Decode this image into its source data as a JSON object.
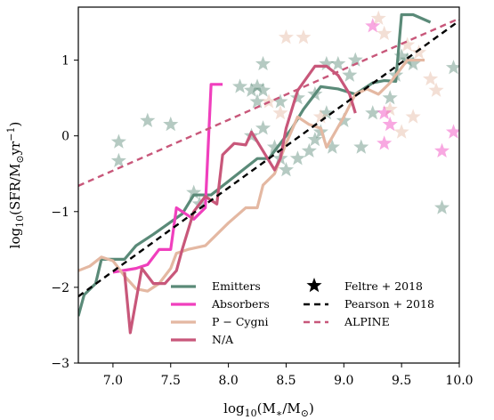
{
  "chart_data": {
    "type": "line",
    "xlabel": "log10(M*/M⊙)",
    "ylabel": "log10(SFR/M⊙yr⁻¹)",
    "xlim": [
      6.7,
      10.0
    ],
    "ylim": [
      -3.0,
      1.7
    ],
    "xticks": [
      "7.0",
      "7.5",
      "8.0",
      "8.5",
      "9.0",
      "9.5",
      "10.0"
    ],
    "xtick_values": [
      7.0,
      7.5,
      8.0,
      8.5,
      9.0,
      9.5,
      10.0
    ],
    "yticks": [
      "−3",
      "−2",
      "−1",
      "0",
      "1"
    ],
    "ytick_values": [
      -3,
      -2,
      -1,
      0,
      1
    ],
    "legend_position": "lower-center",
    "series": [
      {
        "name": "Emitters",
        "kind": "line",
        "color": "#5a8a78",
        "width": 3.2,
        "opacity": 1,
        "x": [
          6.7,
          6.75,
          6.85,
          6.9,
          7.1,
          7.2,
          7.35,
          7.6,
          7.7,
          7.85,
          8.0,
          8.25,
          8.35,
          8.45,
          8.55,
          8.65,
          8.8,
          8.95,
          9.1,
          9.25,
          9.35,
          9.45,
          9.5,
          9.6,
          9.75
        ],
        "y": [
          -2.38,
          -2.1,
          -1.95,
          -1.63,
          -1.63,
          -1.45,
          -1.3,
          -1.03,
          -0.78,
          -0.78,
          -0.6,
          -0.3,
          -0.3,
          -0.1,
          0.1,
          0.35,
          0.65,
          0.62,
          0.55,
          0.7,
          0.73,
          0.72,
          1.6,
          1.6,
          1.5
        ]
      },
      {
        "name": "Absorbers",
        "kind": "line",
        "color": "#f03fbd",
        "width": 3.2,
        "opacity": 1,
        "x": [
          7.0,
          7.2,
          7.3,
          7.4,
          7.5,
          7.55,
          7.7,
          7.8,
          7.85,
          7.95
        ],
        "y": [
          -1.8,
          -1.75,
          -1.7,
          -1.5,
          -1.5,
          -0.95,
          -1.1,
          -0.95,
          0.68,
          0.68
        ]
      },
      {
        "name": "P − Cygni",
        "kind": "line",
        "color": "#e4b8a2",
        "width": 3.2,
        "opacity": 1,
        "x": [
          6.7,
          6.8,
          6.9,
          7.0,
          7.1,
          7.2,
          7.3,
          7.4,
          7.5,
          7.55,
          7.65,
          7.8,
          8.0,
          8.15,
          8.25,
          8.3,
          8.4,
          8.5,
          8.6,
          8.7,
          8.8,
          8.85,
          9.0,
          9.1,
          9.2,
          9.3,
          9.4,
          9.55,
          9.7
        ],
        "y": [
          -1.78,
          -1.72,
          -1.6,
          -1.65,
          -1.85,
          -2.02,
          -2.05,
          -1.95,
          -1.75,
          -1.55,
          -1.5,
          -1.45,
          -1.15,
          -0.95,
          -0.95,
          -0.65,
          -0.5,
          -0.1,
          0.25,
          0.15,
          0.1,
          -0.15,
          0.25,
          0.55,
          0.62,
          0.55,
          0.7,
          1.0,
          1.0
        ]
      },
      {
        "name": "N/A",
        "kind": "line",
        "color": "#c8577a",
        "width": 3.2,
        "opacity": 1,
        "x": [
          7.1,
          7.15,
          7.25,
          7.35,
          7.45,
          7.55,
          7.6,
          7.7,
          7.8,
          7.9,
          7.95,
          8.05,
          8.15,
          8.2,
          8.3,
          8.4,
          8.45,
          8.5,
          8.6,
          8.75,
          8.85,
          8.95,
          9.05,
          9.1
        ],
        "y": [
          -1.8,
          -2.6,
          -1.75,
          -1.95,
          -1.95,
          -1.78,
          -1.5,
          -1.0,
          -0.8,
          -0.9,
          -0.25,
          -0.1,
          -0.12,
          0.05,
          -0.2,
          -0.45,
          -0.3,
          0.1,
          0.6,
          0.92,
          0.92,
          0.8,
          0.55,
          0.3
        ]
      },
      {
        "name": "Pearson + 2018",
        "kind": "line",
        "color": "#000000",
        "width": 2.4,
        "dash": "7,5",
        "opacity": 1,
        "x": [
          6.7,
          10.0
        ],
        "y": [
          -2.12,
          1.52
        ]
      },
      {
        "name": "ALPINE",
        "kind": "line",
        "color": "#c8577a",
        "width": 2.4,
        "dash": "7,5",
        "opacity": 1,
        "x": [
          6.7,
          10.0
        ],
        "y": [
          -0.66,
          1.55
        ]
      },
      {
        "name": "Feltre + 2018",
        "kind": "scatter",
        "marker": "star",
        "points": [
          {
            "x": 7.05,
            "y": -0.33,
            "c": "#5a8a78"
          },
          {
            "x": 7.05,
            "y": -0.08,
            "c": "#5a8a78"
          },
          {
            "x": 7.3,
            "y": 0.2,
            "c": "#5a8a78"
          },
          {
            "x": 7.5,
            "y": 0.15,
            "c": "#5a8a78"
          },
          {
            "x": 8.1,
            "y": 0.65,
            "c": "#5a8a78"
          },
          {
            "x": 8.2,
            "y": 0.6,
            "c": "#5a8a78"
          },
          {
            "x": 8.25,
            "y": 0.65,
            "c": "#5a8a78"
          },
          {
            "x": 8.3,
            "y": 0.6,
            "c": "#5a8a78"
          },
          {
            "x": 8.25,
            "y": 0.45,
            "c": "#5a8a78"
          },
          {
            "x": 8.45,
            "y": 0.45,
            "c": "#5a8a78"
          },
          {
            "x": 8.3,
            "y": 0.95,
            "c": "#5a8a78"
          },
          {
            "x": 8.6,
            "y": 0.5,
            "c": "#5a8a78"
          },
          {
            "x": 8.75,
            "y": 0.55,
            "c": "#5a8a78"
          },
          {
            "x": 8.85,
            "y": 0.95,
            "c": "#5a8a78"
          },
          {
            "x": 8.95,
            "y": 0.95,
            "c": "#5a8a78"
          },
          {
            "x": 9.1,
            "y": 1.0,
            "c": "#5a8a78"
          },
          {
            "x": 9.05,
            "y": 0.8,
            "c": "#5a8a78"
          },
          {
            "x": 9.45,
            "y": 0.8,
            "c": "#5a8a78"
          },
          {
            "x": 9.5,
            "y": 1.05,
            "c": "#5a8a78"
          },
          {
            "x": 9.55,
            "y": 1.0,
            "c": "#5a8a78"
          },
          {
            "x": 9.6,
            "y": 0.95,
            "c": "#5a8a78"
          },
          {
            "x": 9.95,
            "y": 0.9,
            "c": "#5a8a78"
          },
          {
            "x": 9.85,
            "y": -0.95,
            "c": "#5a8a78"
          },
          {
            "x": 8.2,
            "y": 0.0,
            "c": "#5a8a78"
          },
          {
            "x": 8.3,
            "y": 0.1,
            "c": "#5a8a78"
          },
          {
            "x": 8.4,
            "y": -0.15,
            "c": "#5a8a78"
          },
          {
            "x": 8.45,
            "y": -0.3,
            "c": "#5a8a78"
          },
          {
            "x": 8.5,
            "y": -0.45,
            "c": "#5a8a78"
          },
          {
            "x": 8.6,
            "y": -0.3,
            "c": "#5a8a78"
          },
          {
            "x": 8.7,
            "y": -0.2,
            "c": "#5a8a78"
          },
          {
            "x": 8.75,
            "y": -0.05,
            "c": "#5a8a78"
          },
          {
            "x": 8.8,
            "y": 0.05,
            "c": "#5a8a78"
          },
          {
            "x": 8.85,
            "y": 0.3,
            "c": "#5a8a78"
          },
          {
            "x": 8.9,
            "y": -0.15,
            "c": "#5a8a78"
          },
          {
            "x": 9.0,
            "y": 0.2,
            "c": "#5a8a78"
          },
          {
            "x": 9.15,
            "y": -0.15,
            "c": "#5a8a78"
          },
          {
            "x": 9.25,
            "y": 0.3,
            "c": "#5a8a78"
          },
          {
            "x": 9.4,
            "y": 0.5,
            "c": "#5a8a78"
          },
          {
            "x": 7.7,
            "y": -0.75,
            "c": "#5a8a78"
          },
          {
            "x": 7.75,
            "y": -0.9,
            "c": "#5a8a78"
          },
          {
            "x": 8.5,
            "y": 1.3,
            "c": "#e4b8a2"
          },
          {
            "x": 8.65,
            "y": 1.3,
            "c": "#e4b8a2"
          },
          {
            "x": 9.3,
            "y": 1.55,
            "c": "#e4b8a2"
          },
          {
            "x": 9.35,
            "y": 1.35,
            "c": "#e4b8a2"
          },
          {
            "x": 9.55,
            "y": 1.2,
            "c": "#e4b8a2"
          },
          {
            "x": 9.65,
            "y": 1.1,
            "c": "#e4b8a2"
          },
          {
            "x": 9.75,
            "y": 0.75,
            "c": "#e4b8a2"
          },
          {
            "x": 9.8,
            "y": 0.6,
            "c": "#e4b8a2"
          },
          {
            "x": 9.5,
            "y": 0.05,
            "c": "#e4b8a2"
          },
          {
            "x": 8.35,
            "y": 0.45,
            "c": "#e4b8a2"
          },
          {
            "x": 8.45,
            "y": 0.3,
            "c": "#e4b8a2"
          },
          {
            "x": 8.8,
            "y": 0.25,
            "c": "#e4b8a2"
          },
          {
            "x": 9.4,
            "y": 0.35,
            "c": "#e4b8a2"
          },
          {
            "x": 9.6,
            "y": 0.25,
            "c": "#e4b8a2"
          },
          {
            "x": 9.25,
            "y": 1.45,
            "c": "#f03fbd"
          },
          {
            "x": 9.35,
            "y": 0.3,
            "c": "#f03fbd"
          },
          {
            "x": 9.4,
            "y": 0.15,
            "c": "#f03fbd"
          },
          {
            "x": 9.35,
            "y": -0.1,
            "c": "#f03fbd"
          },
          {
            "x": 9.95,
            "y": 0.05,
            "c": "#f03fbd"
          },
          {
            "x": 9.85,
            "y": -0.2,
            "c": "#f03fbd"
          }
        ]
      }
    ]
  },
  "legend": {
    "col1": [
      {
        "label": "Emitters",
        "color": "#5a8a78",
        "style": "solid"
      },
      {
        "label": "Absorbers",
        "color": "#f03fbd",
        "style": "solid"
      },
      {
        "label": "P − Cygni",
        "color": "#e4b8a2",
        "style": "solid"
      },
      {
        "label": "N/A",
        "color": "#c8577a",
        "style": "solid"
      }
    ],
    "col2": [
      {
        "label": "Feltre + 2018",
        "color": "#000000",
        "style": "star"
      },
      {
        "label": "Pearson + 2018",
        "color": "#000000",
        "style": "dashed"
      },
      {
        "label": "ALPINE",
        "color": "#c8577a",
        "style": "dashed"
      }
    ]
  },
  "axes": {
    "xlabel_text": "log10(M*/M⊙)",
    "ylabel_text": "log10(SFR/M⊙yr⁻¹)"
  }
}
